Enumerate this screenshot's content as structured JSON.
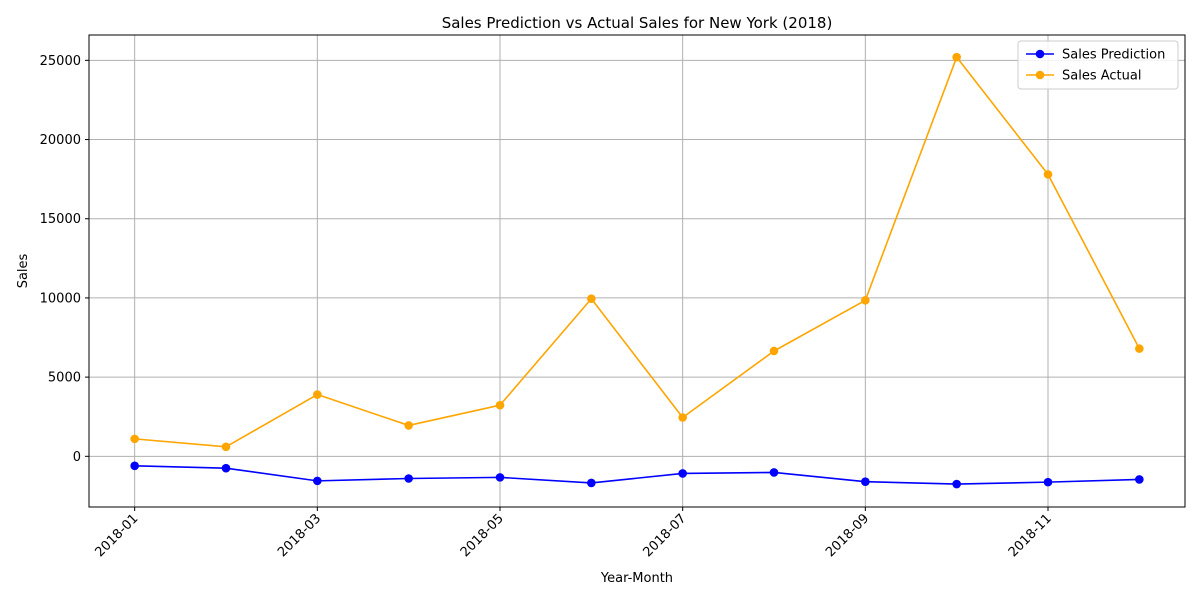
{
  "chart_data": {
    "type": "line",
    "title": "Sales Prediction vs Actual Sales for New York (2018)",
    "xlabel": "Year-Month",
    "ylabel": "Sales",
    "x": [
      "2018-01",
      "2018-02",
      "2018-03",
      "2018-04",
      "2018-05",
      "2018-06",
      "2018-07",
      "2018-08",
      "2018-09",
      "2018-10",
      "2018-11",
      "2018-12"
    ],
    "x_tick_labels": [
      "2018-01",
      "2018-03",
      "2018-05",
      "2018-07",
      "2018-09",
      "2018-11"
    ],
    "y_ticks": [
      0,
      5000,
      10000,
      15000,
      20000,
      25000
    ],
    "ylim": [
      -3200,
      26600
    ],
    "grid": true,
    "legend_position": "top-right",
    "series": [
      {
        "name": "Sales Prediction",
        "color": "#0000ff",
        "values": [
          -600,
          -750,
          -1550,
          -1400,
          -1330,
          -1680,
          -1080,
          -1020,
          -1600,
          -1750,
          -1630,
          -1460
        ]
      },
      {
        "name": "Sales Actual",
        "color": "#ffa500",
        "values": [
          1100,
          600,
          3900,
          1950,
          3230,
          9950,
          2450,
          6650,
          9850,
          25200,
          17800,
          6800
        ]
      }
    ]
  }
}
